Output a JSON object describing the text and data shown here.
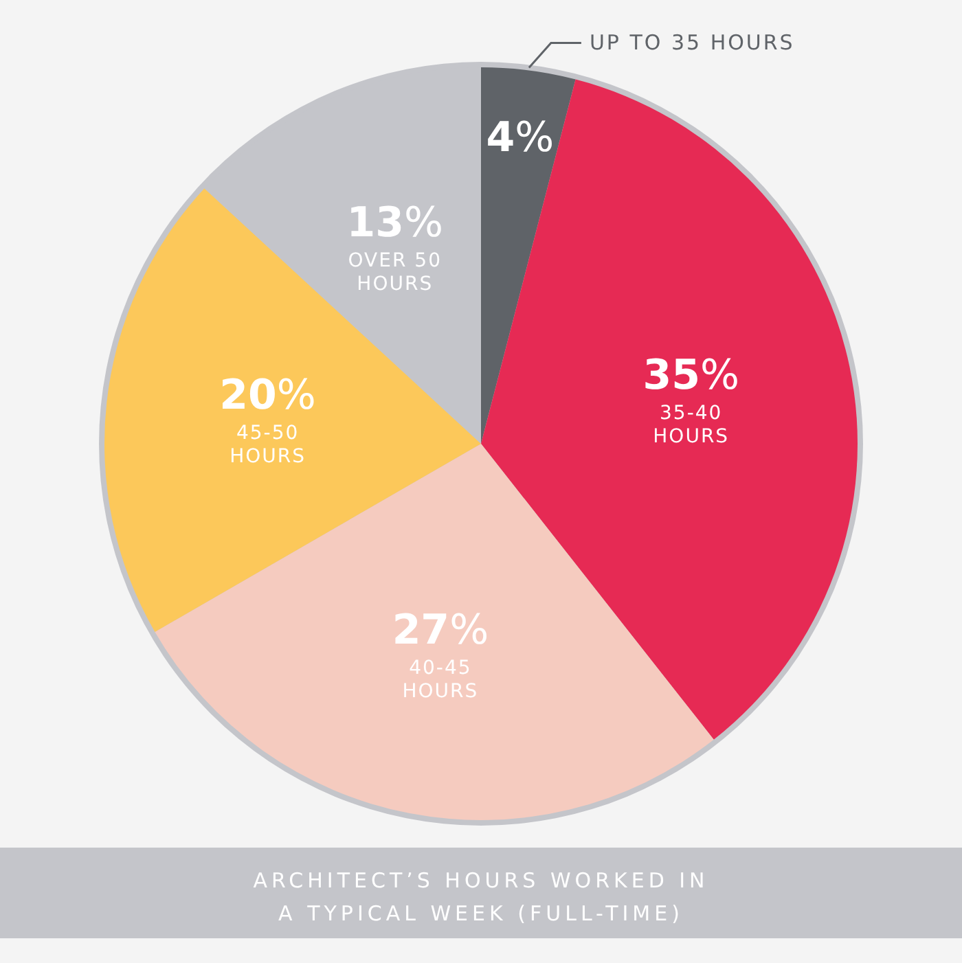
{
  "chart_data": {
    "type": "pie",
    "title": "ARCHITECT’S HOURS WORKED IN A TYPICAL WEEK (FULL-TIME)",
    "categories": [
      "UP TO 35 HOURS",
      "35-40 HOURS",
      "40-45 HOURS",
      "45-50 HOURS",
      "OVER 50 HOURS"
    ],
    "values": [
      4,
      35,
      27,
      20,
      13
    ],
    "colors": [
      "#5f6368",
      "#e62a54",
      "#f5cbbf",
      "#fcc85a",
      "#c4c5ca"
    ],
    "value_labels": [
      "4%",
      "35%",
      "27%",
      "20%",
      "13%"
    ]
  }
}
